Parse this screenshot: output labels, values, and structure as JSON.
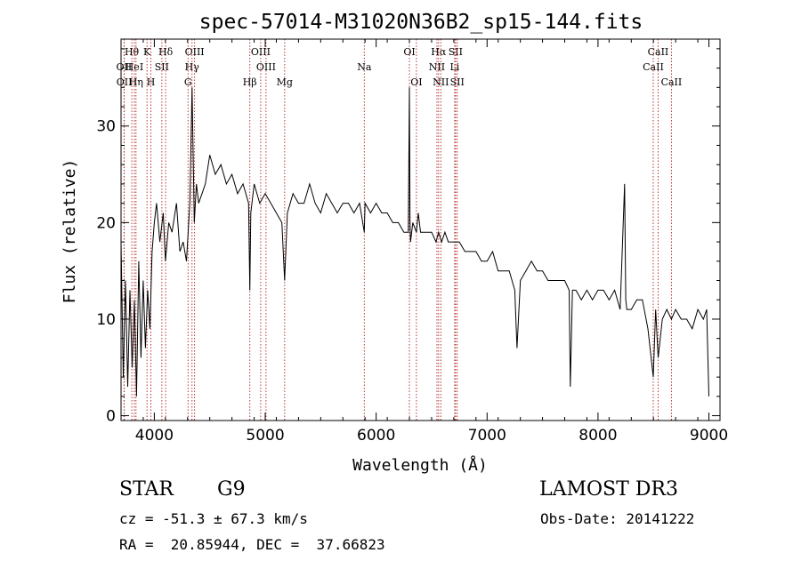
{
  "chart_data": {
    "type": "line",
    "title": "spec-57014-M31020N36B2_sp15-144.fits",
    "xlabel": "Wavelength (Å)",
    "ylabel": "Flux (relative)",
    "xlim": [
      3700,
      9100
    ],
    "ylim": [
      -0.5,
      39
    ],
    "x_ticks": [
      4000,
      5000,
      6000,
      7000,
      8000,
      9000
    ],
    "x_tick_labels": [
      "4000",
      "5000",
      "6000",
      "7000",
      "8000",
      "9000"
    ],
    "y_ticks": [
      0,
      10,
      20,
      30
    ],
    "y_tick_labels": [
      "0",
      "10",
      "20",
      "30"
    ],
    "grid": false,
    "series": [
      {
        "x": [
          3700,
          3720,
          3740,
          3760,
          3780,
          3800,
          3820,
          3840,
          3860,
          3880,
          3900,
          3920,
          3940,
          3960,
          3980,
          4000,
          4020,
          4050,
          4080,
          4100,
          4130,
          4160,
          4200,
          4230,
          4260,
          4290,
          4320,
          4340,
          4360,
          4380,
          4400,
          4430,
          4460,
          4500,
          4550,
          4600,
          4650,
          4700,
          4750,
          4800,
          4850,
          4861,
          4870,
          4900,
          4950,
          5000,
          5050,
          5100,
          5150,
          5175,
          5200,
          5250,
          5300,
          5350,
          5400,
          5450,
          5500,
          5550,
          5600,
          5650,
          5700,
          5750,
          5800,
          5850,
          5893,
          5900,
          5950,
          6000,
          6050,
          6100,
          6150,
          6200,
          6250,
          6290,
          6300,
          6305,
          6310,
          6330,
          6363,
          6380,
          6400,
          6450,
          6500,
          6540,
          6563,
          6590,
          6620,
          6650,
          6700,
          6750,
          6800,
          6850,
          6900,
          6950,
          7000,
          7050,
          7100,
          7150,
          7200,
          7250,
          7270,
          7300,
          7350,
          7400,
          7450,
          7500,
          7550,
          7600,
          7650,
          7700,
          7740,
          7750,
          7770,
          7800,
          7850,
          7900,
          7950,
          8000,
          8050,
          8100,
          8150,
          8200,
          8240,
          8250,
          8260,
          8300,
          8350,
          8400,
          8450,
          8498,
          8520,
          8542,
          8580,
          8620,
          8662,
          8700,
          8750,
          8800,
          8850,
          8900,
          8950,
          8980,
          9000
        ],
        "y": [
          18,
          4,
          14,
          3,
          13,
          5,
          12,
          2,
          16,
          6,
          14,
          7,
          13,
          9,
          17,
          20,
          22,
          18,
          21,
          16,
          20,
          19,
          22,
          17,
          18,
          16,
          22,
          34,
          20,
          24,
          22,
          23,
          24,
          27,
          25,
          26,
          24,
          25,
          23,
          24,
          22,
          13,
          21,
          24,
          22,
          23,
          22,
          21,
          20,
          14,
          21,
          23,
          22,
          22,
          24,
          22,
          21,
          23,
          22,
          21,
          22,
          22,
          21,
          22,
          19,
          22,
          21,
          22,
          21,
          21,
          20,
          20,
          19,
          19,
          34,
          20,
          18,
          20,
          19,
          21,
          19,
          19,
          19,
          18,
          19,
          18,
          19,
          18,
          18,
          18,
          17,
          17,
          17,
          16,
          16,
          17,
          15,
          15,
          15,
          13,
          7,
          14,
          15,
          16,
          15,
          15,
          14,
          14,
          14,
          14,
          13,
          3,
          13,
          13,
          12,
          13,
          12,
          13,
          13,
          12,
          13,
          11,
          24,
          12,
          11,
          11,
          12,
          12,
          9,
          4,
          11,
          6,
          10,
          11,
          10,
          11,
          10,
          10,
          9,
          11,
          10,
          11,
          2
        ]
      }
    ],
    "line_markers": [
      {
        "label": "OII",
        "x": 3727,
        "row": 2
      },
      {
        "label": "OII",
        "x": 3729,
        "row": 3
      },
      {
        "label": "Hθ",
        "x": 3797,
        "row": 1
      },
      {
        "label": "HeI",
        "x": 3820,
        "row": 2
      },
      {
        "label": "Hη",
        "x": 3835,
        "row": 3
      },
      {
        "label": "K",
        "x": 3934,
        "row": 1
      },
      {
        "label": "SII",
        "x": 4068,
        "row": 2
      },
      {
        "label": "H",
        "x": 3969,
        "row": 3
      },
      {
        "label": "Hδ",
        "x": 4102,
        "row": 1
      },
      {
        "label": "OIII",
        "x": 4363,
        "row": 1
      },
      {
        "label": "Hγ",
        "x": 4340,
        "row": 2
      },
      {
        "label": "G",
        "x": 4304,
        "row": 3
      },
      {
        "label": "OIII",
        "x": 4959,
        "row": 1
      },
      {
        "label": "OIII",
        "x": 5007,
        "row": 2
      },
      {
        "label": "Hβ",
        "x": 4861,
        "row": 3
      },
      {
        "label": "Mg",
        "x": 5175,
        "row": 3
      },
      {
        "label": "Na",
        "x": 5893,
        "row": 2
      },
      {
        "label": "OI",
        "x": 6300,
        "row": 1
      },
      {
        "label": "OI",
        "x": 6363,
        "row": 3
      },
      {
        "label": "Hα",
        "x": 6563,
        "row": 1
      },
      {
        "label": "SII",
        "x": 6716,
        "row": 1
      },
      {
        "label": "NII",
        "x": 6548,
        "row": 2
      },
      {
        "label": "Li",
        "x": 6708,
        "row": 2
      },
      {
        "label": "NII",
        "x": 6583,
        "row": 3
      },
      {
        "label": "SII",
        "x": 6731,
        "row": 3
      },
      {
        "label": "CaII",
        "x": 8542,
        "row": 1
      },
      {
        "label": "CaII",
        "x": 8498,
        "row": 2
      },
      {
        "label": "CaII",
        "x": 8662,
        "row": 3
      }
    ]
  },
  "info": {
    "object_class": "STAR",
    "subclass": "G9",
    "redshift_text": "cz = -51.3 ± 67.3 km/s",
    "coords_text": "RA =  20.85944, DEC =  37.66823",
    "survey": "LAMOST DR3",
    "obs_date_text": "Obs-Date: 20141222"
  },
  "colors": {
    "spectrum": "#000000",
    "line_marker": "#b22222",
    "axes": "#000000",
    "background": "#ffffff"
  }
}
